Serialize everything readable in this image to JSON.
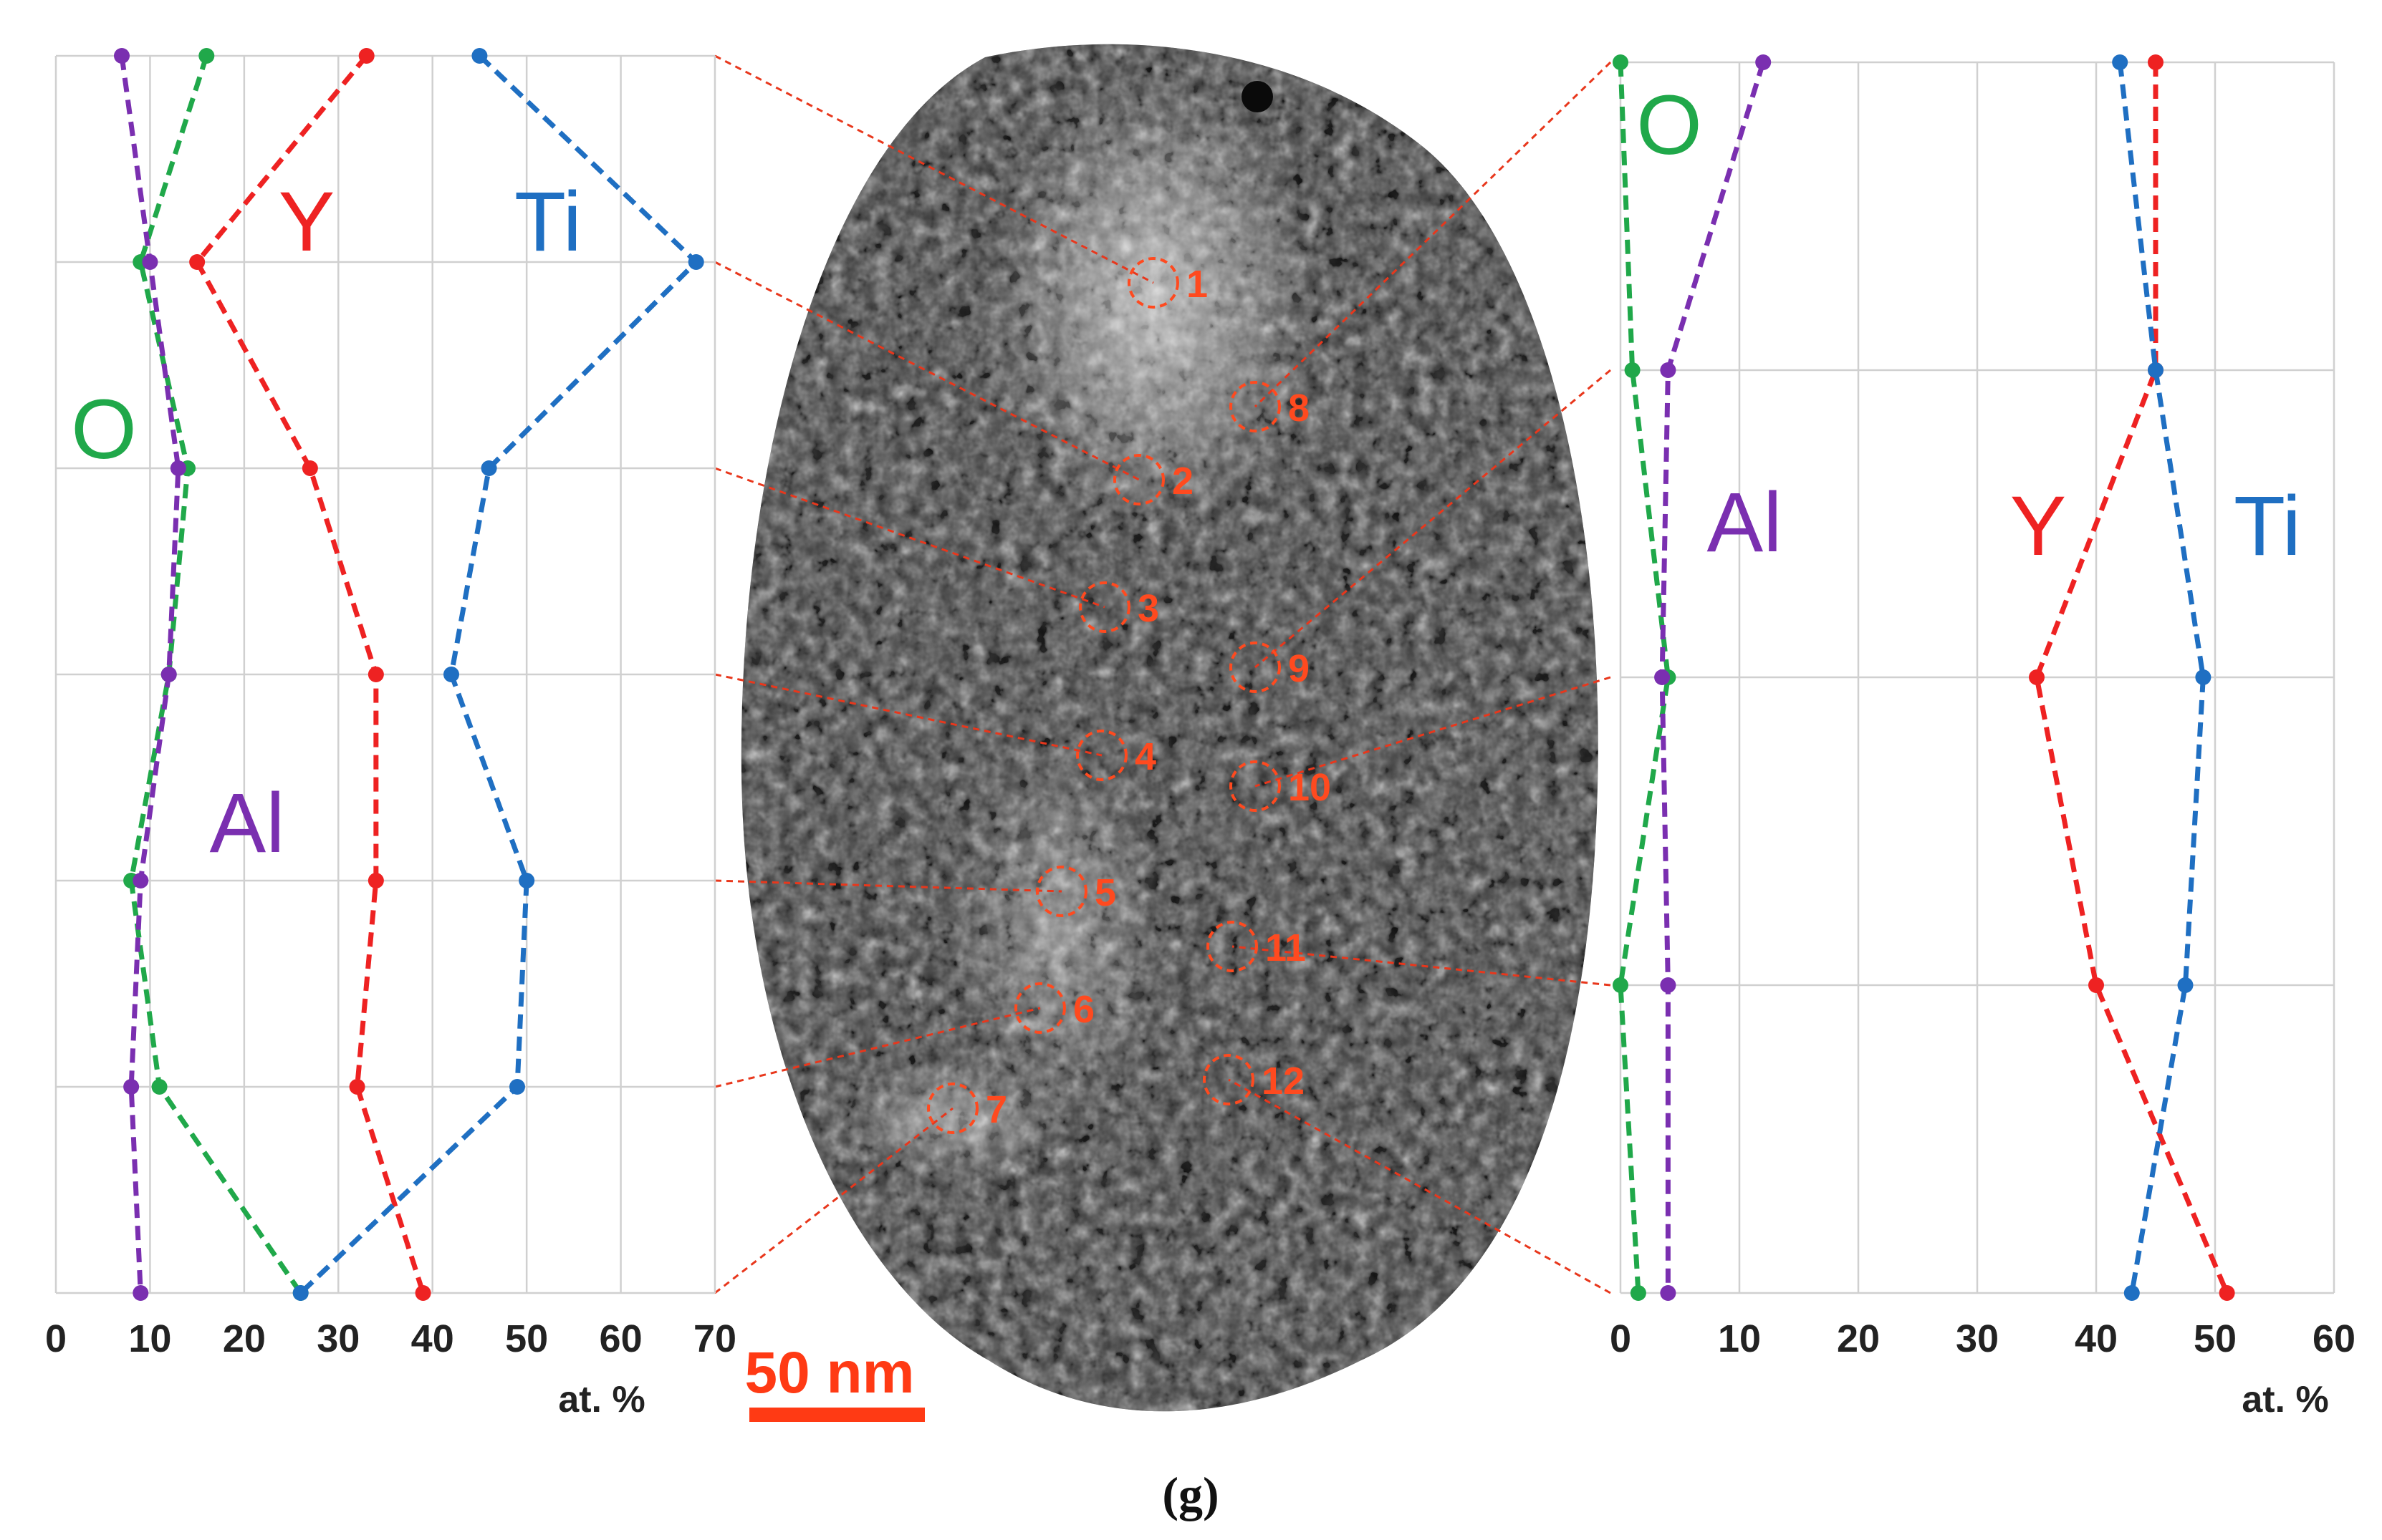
{
  "colors": {
    "O": "#20a84a",
    "Al": "#7a2fb0",
    "Y": "#ee2222",
    "Ti": "#1f6fc2",
    "spot": "#ff4a1f",
    "scale_bar": "#ff3a14"
  },
  "chart_data": [
    {
      "type": "line",
      "orientation": "vertical-profile",
      "panel": "left",
      "xlabel": "at. %",
      "xlim": [
        0,
        70
      ],
      "xticks": [
        0,
        10,
        20,
        30,
        40,
        50,
        60,
        70
      ],
      "points": [
        "1",
        "2",
        "3",
        "4",
        "5",
        "6",
        "7"
      ],
      "series": [
        {
          "name": "O",
          "values": [
            16,
            9,
            14,
            12,
            8,
            11,
            26
          ]
        },
        {
          "name": "Al",
          "values": [
            7,
            10,
            13,
            12,
            9,
            8,
            9
          ]
        },
        {
          "name": "Y",
          "values": [
            33,
            15,
            27,
            34,
            34,
            32,
            39
          ]
        },
        {
          "name": "Ti",
          "values": [
            45,
            68,
            46,
            42,
            50,
            49,
            26
          ]
        }
      ]
    },
    {
      "type": "line",
      "orientation": "vertical-profile",
      "panel": "right",
      "xlabel": "at. %",
      "xlim": [
        0,
        60
      ],
      "xticks": [
        0,
        10,
        20,
        30,
        40,
        50,
        60
      ],
      "points": [
        "8",
        "9",
        "10",
        "11",
        "12"
      ],
      "series": [
        {
          "name": "O",
          "values": [
            0,
            1,
            4,
            0,
            1.5
          ]
        },
        {
          "name": "Al",
          "values": [
            12,
            4,
            3.5,
            4,
            4
          ]
        },
        {
          "name": "Y",
          "values": [
            45,
            45,
            35,
            40,
            51
          ]
        },
        {
          "name": "Ti",
          "values": [
            42,
            45,
            49,
            47.5,
            43
          ]
        }
      ]
    }
  ],
  "image": {
    "scale_bar_label": "50 nm",
    "spots": [
      "1",
      "2",
      "3",
      "4",
      "5",
      "6",
      "7",
      "8",
      "9",
      "10",
      "11",
      "12"
    ]
  },
  "caption": "(g)"
}
